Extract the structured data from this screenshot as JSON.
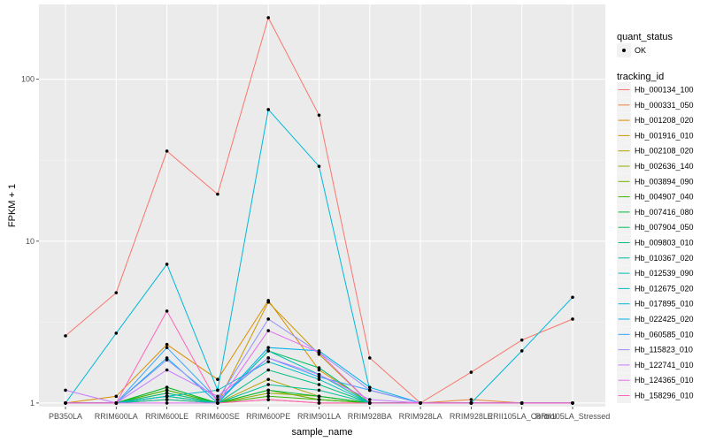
{
  "chart_data": {
    "type": "line",
    "xlabel": "sample_name",
    "ylabel": "FPKM + 1",
    "y_scale": "log10",
    "ylim": [
      0.95,
      290
    ],
    "y_ticks": [
      {
        "value": 1,
        "label": "1"
      },
      {
        "value": 10,
        "label": "10"
      },
      {
        "value": 100,
        "label": "100"
      }
    ],
    "grid": true,
    "panel_background": "#ebebeb",
    "legend_position": "right",
    "categories": [
      "PB350LA",
      "RRIM600LA",
      "RRIM600LE",
      "RRIM600SE",
      "RRIM600PE",
      "RRIM901LA",
      "RRIM928BA",
      "RRIM928LA",
      "RRIM928LE",
      "RRII105LA_Control",
      "RRII105LA_Stressed"
    ],
    "quant_status_legend": {
      "title": "quant_status",
      "entries": [
        "OK"
      ]
    },
    "tracking_legend_title": "tracking_id",
    "series": [
      {
        "name": "Hb_000134_100",
        "color": "#F8766D",
        "values": [
          2.6,
          4.8,
          36,
          19.5,
          240,
          60,
          1.9,
          1.0,
          1.55,
          2.45,
          3.3
        ]
      },
      {
        "name": "Hb_000331_050",
        "color": "#EC8239",
        "values": [
          1.0,
          1.0,
          1.05,
          1.0,
          1.05,
          1.0,
          1.0,
          1.0,
          1.05,
          1.0,
          1.0
        ]
      },
      {
        "name": "Hb_001208_020",
        "color": "#DB8E00",
        "values": [
          1.0,
          1.1,
          2.3,
          1.4,
          4.3,
          1.6,
          1.0,
          1.0,
          1.0,
          1.0,
          1.0
        ]
      },
      {
        "name": "Hb_001916_010",
        "color": "#C79800",
        "values": [
          1.0,
          1.0,
          1.2,
          1.0,
          4.2,
          2.0,
          1.0,
          1.0,
          1.0,
          1.0,
          1.0
        ]
      },
      {
        "name": "Hb_002108_020",
        "color": "#AFA100",
        "values": [
          1.0,
          1.0,
          1.1,
          1.0,
          1.4,
          1.1,
          1.0,
          1.0,
          1.0,
          1.0,
          1.0
        ]
      },
      {
        "name": "Hb_002636_140",
        "color": "#93AA00",
        "values": [
          1.0,
          1.0,
          1.15,
          1.0,
          1.15,
          1.1,
          1.0,
          1.0,
          1.0,
          1.0,
          1.0
        ]
      },
      {
        "name": "Hb_003894_090",
        "color": "#72B000",
        "values": [
          1.0,
          1.0,
          1.25,
          1.0,
          1.2,
          1.05,
          1.0,
          1.0,
          1.0,
          1.0,
          1.0
        ]
      },
      {
        "name": "Hb_004907_040",
        "color": "#39B600",
        "values": [
          1.0,
          1.0,
          1.2,
          1.0,
          1.1,
          1.05,
          1.0,
          1.0,
          1.0,
          1.0,
          1.0
        ]
      },
      {
        "name": "Hb_007416_080",
        "color": "#00BA38",
        "values": [
          1.0,
          1.0,
          1.25,
          1.0,
          1.2,
          1.1,
          1.0,
          1.0,
          1.0,
          1.0,
          1.0
        ]
      },
      {
        "name": "Hb_007904_050",
        "color": "#00BD5F",
        "values": [
          1.0,
          1.0,
          1.1,
          1.0,
          2.1,
          1.65,
          1.0,
          1.0,
          1.0,
          1.0,
          1.0
        ]
      },
      {
        "name": "Hb_009803_010",
        "color": "#00BF7D",
        "values": [
          1.0,
          1.0,
          1.15,
          1.0,
          1.6,
          1.3,
          1.0,
          1.0,
          1.0,
          1.0,
          1.0
        ]
      },
      {
        "name": "Hb_010367_020",
        "color": "#00C097",
        "values": [
          1.0,
          1.0,
          1.05,
          1.0,
          1.3,
          1.2,
          1.0,
          1.0,
          1.0,
          1.0,
          1.0
        ]
      },
      {
        "name": "Hb_012539_090",
        "color": "#00C0AF",
        "values": [
          1.0,
          1.0,
          1.1,
          1.0,
          2.1,
          1.5,
          1.0,
          1.0,
          1.0,
          1.0,
          1.0
        ]
      },
      {
        "name": "Hb_012675_020",
        "color": "#00BCC4",
        "values": [
          1.0,
          1.0,
          1.1,
          1.2,
          1.8,
          1.4,
          1.0,
          1.0,
          1.0,
          1.0,
          1.0
        ]
      },
      {
        "name": "Hb_017895_010",
        "color": "#00B8D8",
        "values": [
          1.0,
          2.7,
          7.2,
          1.2,
          65,
          29,
          1.2,
          1.0,
          1.0,
          2.1,
          4.5
        ]
      },
      {
        "name": "Hb_022425_020",
        "color": "#00B0EA",
        "values": [
          1.0,
          1.0,
          1.9,
          1.0,
          2.2,
          2.1,
          1.25,
          1.0,
          1.0,
          1.0,
          1.0
        ]
      },
      {
        "name": "Hb_060585_010",
        "color": "#35A2FF",
        "values": [
          1.0,
          1.0,
          2.2,
          1.05,
          1.9,
          1.45,
          1.2,
          1.0,
          1.0,
          1.0,
          1.0
        ]
      },
      {
        "name": "Hb_115823_010",
        "color": "#9590FF",
        "values": [
          1.0,
          1.0,
          1.85,
          1.05,
          3.3,
          2.05,
          1.2,
          1.0,
          1.0,
          1.0,
          1.0
        ]
      },
      {
        "name": "Hb_122741_010",
        "color": "#C77CFF",
        "values": [
          1.2,
          1.0,
          1.6,
          1.1,
          1.9,
          1.5,
          1.05,
          1.0,
          1.0,
          1.0,
          1.0
        ]
      },
      {
        "name": "Hb_124365_010",
        "color": "#E76BF3",
        "values": [
          1.0,
          1.0,
          1.0,
          1.0,
          2.8,
          2.05,
          1.0,
          1.0,
          1.0,
          1.0,
          1.0
        ]
      },
      {
        "name": "Hb_158296_010",
        "color": "#FF62BC",
        "values": [
          1.0,
          1.0,
          3.7,
          1.0,
          1.05,
          1.0,
          1.0,
          1.0,
          1.0,
          1.0,
          1.0
        ]
      }
    ]
  }
}
